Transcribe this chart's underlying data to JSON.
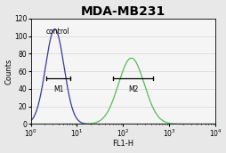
{
  "title": "MDA-MB231",
  "xlabel": "FL1-H",
  "ylabel": "Counts",
  "title_fontsize": 10,
  "label_fontsize": 6,
  "tick_fontsize": 5.5,
  "control_label": "control",
  "gate1_label": "M1",
  "gate2_label": "M2",
  "control_color": "#3a3a99",
  "sample_color": "#55bb55",
  "background_color": "#e8e8e8",
  "plot_bg": "#f5f5f5",
  "ylim": [
    0,
    120
  ],
  "yticks": [
    0,
    20,
    40,
    60,
    80,
    100,
    120
  ],
  "xlim_log_min": 1,
  "xlim_log_max": 10000,
  "control_peak_log": 0.52,
  "control_peak_height": 108,
  "control_sigma": 0.2,
  "sample_peak_log": 2.18,
  "sample_peak_height": 75,
  "sample_sigma": 0.28,
  "gate1_x_start_log": 0.34,
  "gate1_x_end_log": 0.85,
  "gate1_y": 52,
  "gate2_x_start_log": 1.78,
  "gate2_x_end_log": 2.65,
  "gate2_y": 52
}
